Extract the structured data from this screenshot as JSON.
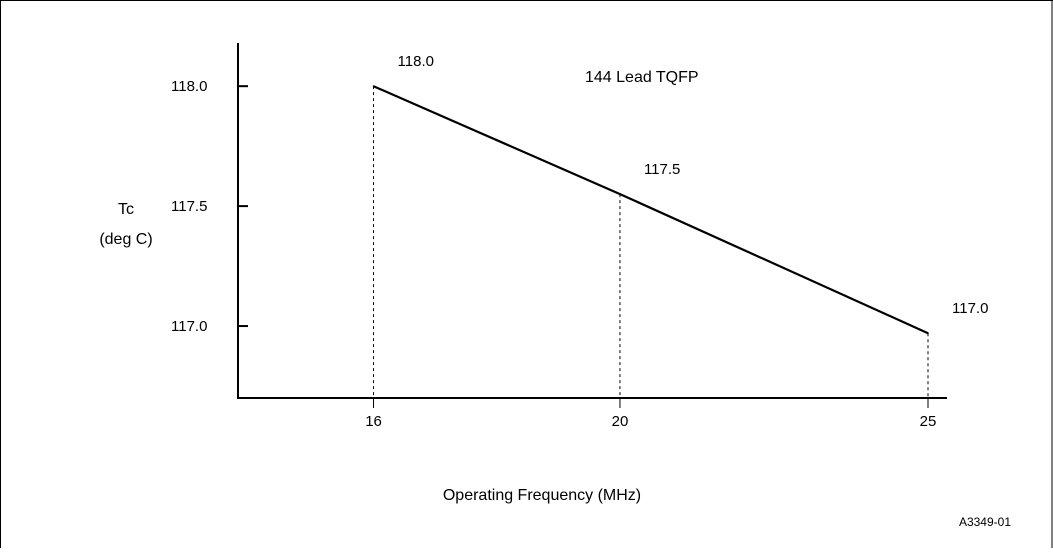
{
  "chart_data": {
    "type": "line",
    "title": "144 Lead TQFP",
    "xlabel": "Operating Frequency (MHz)",
    "ylabel": [
      "Tc",
      "(deg C)"
    ],
    "figure_id": "A3349-01",
    "x_ticks": [
      "16",
      "20",
      "25"
    ],
    "y_ticks": [
      "118.0",
      "117.5",
      "117.0"
    ],
    "x": [
      16,
      20,
      25
    ],
    "y": [
      118.0,
      117.55,
      116.97
    ],
    "point_labels": [
      "118.0",
      "117.5",
      "117.0"
    ],
    "series": [
      {
        "values": [
          118.0,
          117.55,
          116.97
        ]
      }
    ],
    "xlim": [
      13.8,
      25
    ],
    "ylim": [
      116.7,
      118.18
    ],
    "grid": false,
    "legend": "none",
    "colors": {
      "line": "#000000",
      "axis": "#000000",
      "background": "#ffffff",
      "frame": "#000000"
    }
  }
}
